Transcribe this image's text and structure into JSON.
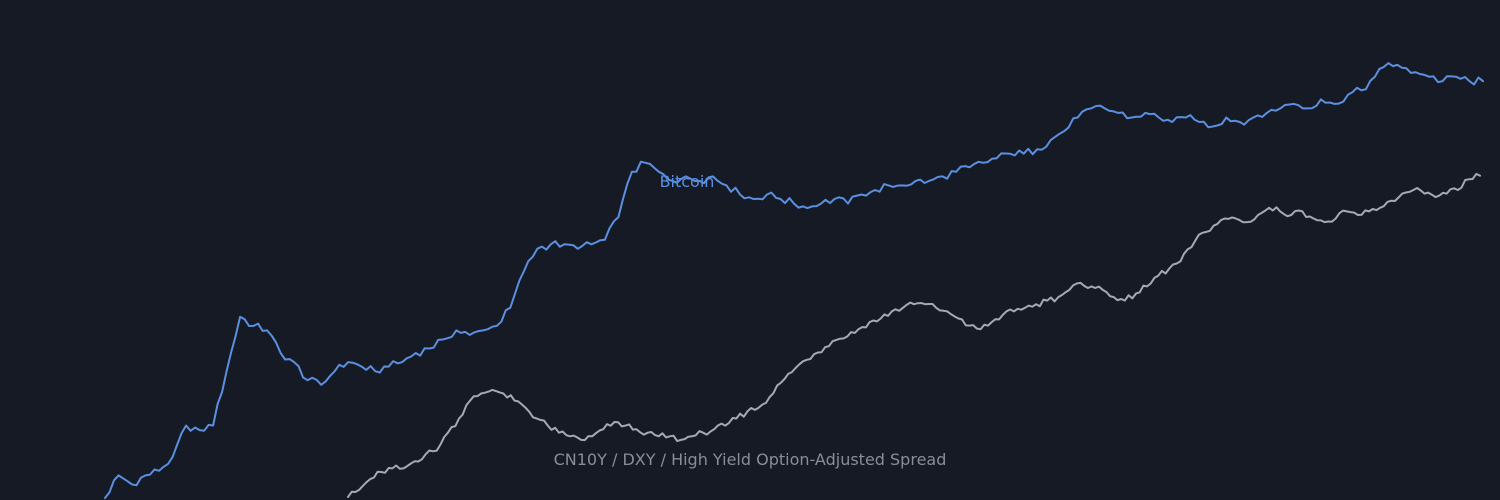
{
  "chart_data": {
    "type": "line",
    "title": "",
    "xlabel": "",
    "ylabel": "",
    "grid": false,
    "legend": "none",
    "series": [
      {
        "name": "Bitcoin",
        "color": "#5b8fe0",
        "line_width": 2,
        "values": [
          [
            0,
            0.0
          ],
          [
            1,
            0.05
          ],
          [
            2,
            0.03
          ],
          [
            3,
            0.05
          ],
          [
            4,
            0.06
          ],
          [
            5,
            0.09
          ],
          [
            6,
            0.16
          ],
          [
            7,
            0.15
          ],
          [
            8,
            0.16
          ],
          [
            9,
            0.28
          ],
          [
            10,
            0.4
          ],
          [
            11,
            0.38
          ],
          [
            12,
            0.37
          ],
          [
            13,
            0.32
          ],
          [
            14,
            0.3
          ],
          [
            15,
            0.26
          ],
          [
            16,
            0.25
          ],
          [
            17,
            0.28
          ],
          [
            18,
            0.3
          ],
          [
            19,
            0.29
          ],
          [
            20,
            0.28
          ],
          [
            21,
            0.29
          ],
          [
            22,
            0.3
          ],
          [
            23,
            0.32
          ],
          [
            24,
            0.33
          ],
          [
            25,
            0.35
          ],
          [
            26,
            0.37
          ],
          [
            27,
            0.36
          ],
          [
            28,
            0.37
          ],
          [
            29,
            0.38
          ],
          [
            30,
            0.42
          ],
          [
            31,
            0.5
          ],
          [
            32,
            0.55
          ],
          [
            33,
            0.56
          ],
          [
            34,
            0.56
          ],
          [
            35,
            0.55
          ],
          [
            36,
            0.56
          ],
          [
            37,
            0.57
          ],
          [
            38,
            0.62
          ],
          [
            39,
            0.72
          ],
          [
            40,
            0.74
          ],
          [
            41,
            0.72
          ],
          [
            42,
            0.7
          ],
          [
            43,
            0.71
          ],
          [
            44,
            0.7
          ],
          [
            45,
            0.71
          ],
          [
            46,
            0.69
          ],
          [
            47,
            0.67
          ],
          [
            48,
            0.66
          ],
          [
            49,
            0.67
          ],
          [
            50,
            0.66
          ],
          [
            51,
            0.65
          ],
          [
            52,
            0.64
          ],
          [
            53,
            0.65
          ],
          [
            54,
            0.66
          ],
          [
            55,
            0.65
          ],
          [
            56,
            0.67
          ],
          [
            57,
            0.68
          ],
          [
            58,
            0.69
          ],
          [
            59,
            0.69
          ],
          [
            60,
            0.7
          ],
          [
            61,
            0.7
          ],
          [
            62,
            0.71
          ],
          [
            63,
            0.72
          ],
          [
            64,
            0.73
          ],
          [
            65,
            0.74
          ],
          [
            66,
            0.75
          ],
          [
            67,
            0.76
          ],
          [
            68,
            0.76
          ],
          [
            69,
            0.77
          ],
          [
            70,
            0.79
          ],
          [
            71,
            0.81
          ],
          [
            72,
            0.84
          ],
          [
            73,
            0.86
          ],
          [
            74,
            0.86
          ],
          [
            75,
            0.85
          ],
          [
            76,
            0.84
          ],
          [
            77,
            0.85
          ],
          [
            78,
            0.84
          ],
          [
            79,
            0.83
          ],
          [
            80,
            0.84
          ],
          [
            81,
            0.83
          ],
          [
            82,
            0.82
          ],
          [
            83,
            0.84
          ],
          [
            84,
            0.83
          ],
          [
            85,
            0.84
          ],
          [
            86,
            0.85
          ],
          [
            87,
            0.86
          ],
          [
            88,
            0.87
          ],
          [
            89,
            0.86
          ],
          [
            90,
            0.88
          ],
          [
            91,
            0.87
          ],
          [
            92,
            0.89
          ],
          [
            93,
            0.9
          ],
          [
            94,
            0.93
          ],
          [
            95,
            0.96
          ],
          [
            96,
            0.95
          ],
          [
            97,
            0.94
          ],
          [
            98,
            0.93
          ],
          [
            99,
            0.92
          ],
          [
            100,
            0.93
          ],
          [
            101,
            0.92
          ],
          [
            102,
            0.92
          ]
        ]
      },
      {
        "name": "CN10Y / DXY / High Yield Option-Adjusted Spread",
        "color": "#a7a9b1",
        "line_width": 2,
        "values": [
          [
            0,
            0.0
          ],
          [
            1,
            0.02
          ],
          [
            2,
            0.05
          ],
          [
            3,
            0.07
          ],
          [
            4,
            0.08
          ],
          [
            5,
            0.08
          ],
          [
            6,
            0.1
          ],
          [
            7,
            0.12
          ],
          [
            8,
            0.13
          ],
          [
            9,
            0.18
          ],
          [
            10,
            0.22
          ],
          [
            11,
            0.27
          ],
          [
            12,
            0.29
          ],
          [
            13,
            0.3
          ],
          [
            14,
            0.29
          ],
          [
            15,
            0.27
          ],
          [
            16,
            0.25
          ],
          [
            17,
            0.22
          ],
          [
            18,
            0.2
          ],
          [
            19,
            0.18
          ],
          [
            20,
            0.17
          ],
          [
            21,
            0.16
          ],
          [
            22,
            0.17
          ],
          [
            23,
            0.19
          ],
          [
            24,
            0.21
          ],
          [
            25,
            0.2
          ],
          [
            26,
            0.19
          ],
          [
            27,
            0.18
          ],
          [
            28,
            0.17
          ],
          [
            29,
            0.17
          ],
          [
            30,
            0.16
          ],
          [
            31,
            0.17
          ],
          [
            32,
            0.18
          ],
          [
            33,
            0.19
          ],
          [
            34,
            0.2
          ],
          [
            35,
            0.22
          ],
          [
            36,
            0.24
          ],
          [
            37,
            0.25
          ],
          [
            38,
            0.28
          ],
          [
            39,
            0.32
          ],
          [
            40,
            0.35
          ],
          [
            41,
            0.38
          ],
          [
            42,
            0.4
          ],
          [
            43,
            0.42
          ],
          [
            44,
            0.44
          ],
          [
            45,
            0.45
          ],
          [
            46,
            0.47
          ],
          [
            47,
            0.49
          ],
          [
            48,
            0.5
          ],
          [
            49,
            0.52
          ],
          [
            50,
            0.53
          ],
          [
            51,
            0.54
          ],
          [
            52,
            0.54
          ],
          [
            53,
            0.53
          ],
          [
            54,
            0.52
          ],
          [
            55,
            0.5
          ],
          [
            56,
            0.48
          ],
          [
            57,
            0.47
          ],
          [
            58,
            0.49
          ],
          [
            59,
            0.51
          ],
          [
            60,
            0.52
          ],
          [
            61,
            0.53
          ],
          [
            62,
            0.54
          ],
          [
            63,
            0.55
          ],
          [
            64,
            0.56
          ],
          [
            65,
            0.58
          ],
          [
            66,
            0.6
          ],
          [
            67,
            0.59
          ],
          [
            68,
            0.58
          ],
          [
            69,
            0.56
          ],
          [
            70,
            0.55
          ],
          [
            71,
            0.57
          ],
          [
            72,
            0.59
          ],
          [
            73,
            0.62
          ],
          [
            74,
            0.64
          ],
          [
            75,
            0.66
          ],
          [
            76,
            0.7
          ],
          [
            77,
            0.74
          ],
          [
            78,
            0.76
          ],
          [
            79,
            0.78
          ],
          [
            80,
            0.78
          ],
          [
            81,
            0.77
          ],
          [
            82,
            0.79
          ],
          [
            83,
            0.81
          ],
          [
            84,
            0.8
          ],
          [
            85,
            0.79
          ],
          [
            86,
            0.8
          ],
          [
            87,
            0.78
          ],
          [
            88,
            0.77
          ],
          [
            89,
            0.78
          ],
          [
            90,
            0.8
          ],
          [
            91,
            0.79
          ],
          [
            92,
            0.8
          ],
          [
            93,
            0.81
          ],
          [
            94,
            0.83
          ],
          [
            95,
            0.85
          ],
          [
            96,
            0.86
          ],
          [
            97,
            0.85
          ],
          [
            98,
            0.84
          ],
          [
            99,
            0.85
          ],
          [
            100,
            0.86
          ],
          [
            101,
            0.89
          ],
          [
            102,
            0.9
          ]
        ]
      }
    ],
    "labels": [
      {
        "text": "Bitcoin",
        "series": 0,
        "color": "#5b8fe0"
      },
      {
        "text": "CN10Y / DXY / High Yield Option-Adjusted Spread",
        "series": 1,
        "color": "#8a8d96"
      }
    ]
  }
}
